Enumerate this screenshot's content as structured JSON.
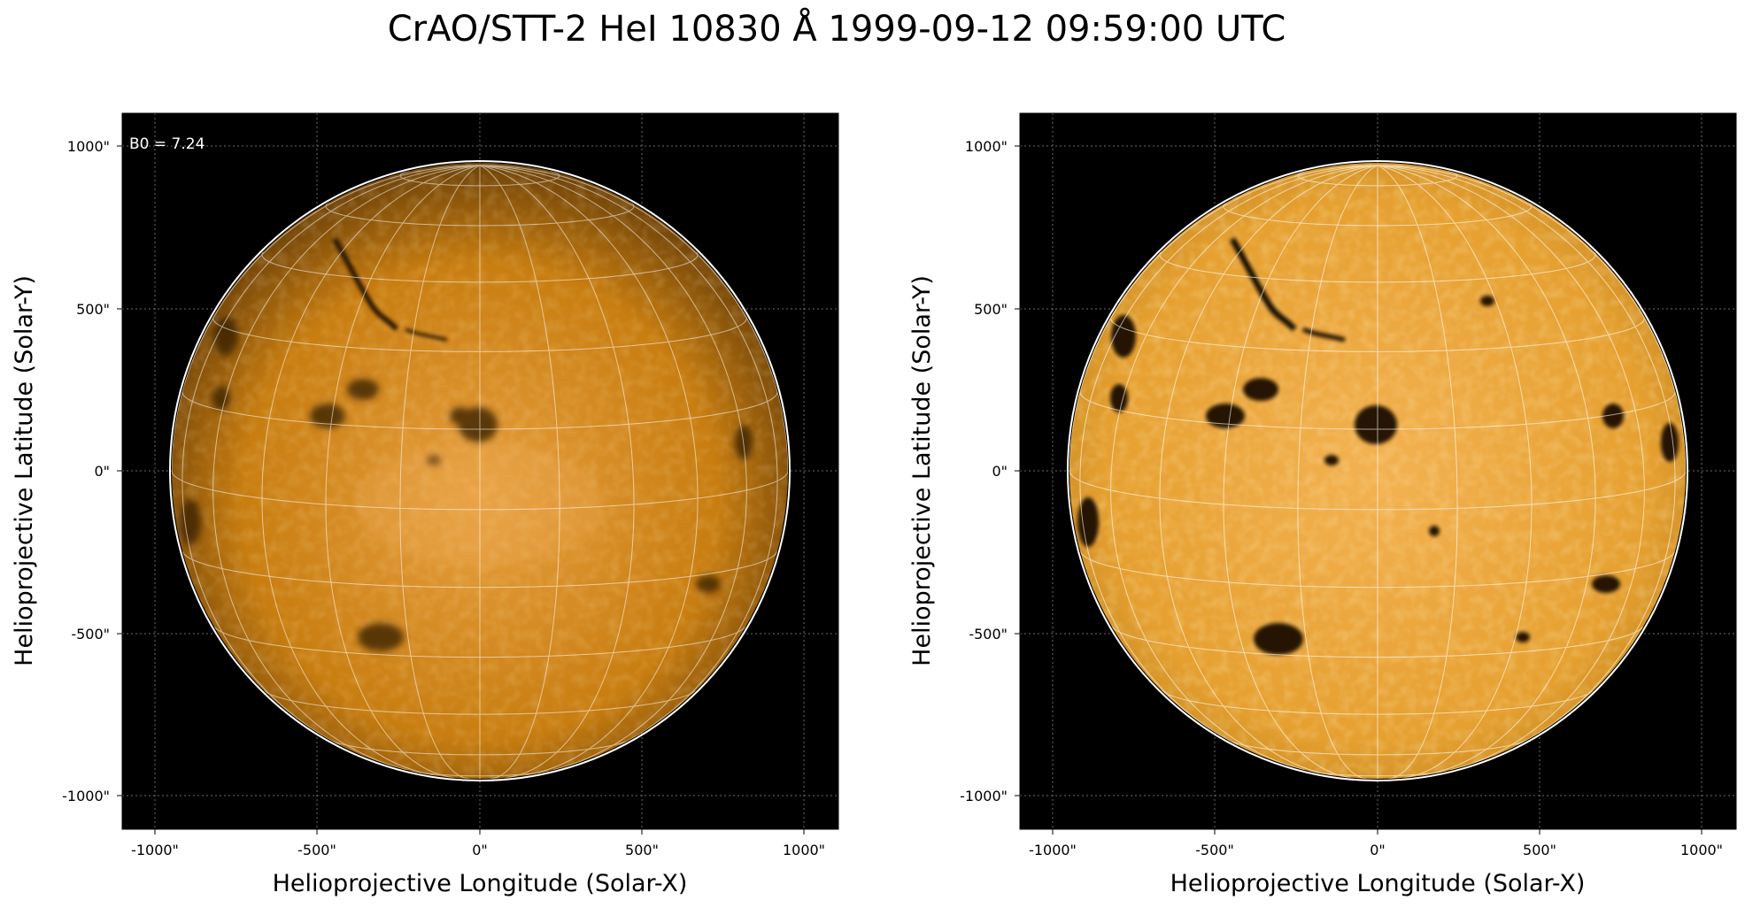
{
  "title": "CrAO/STT-2 HeI 10830 Å 1999-09-12 09:59:00 UTC",
  "colors": {
    "background": "#000000",
    "disk": "#cc8000",
    "limb": "#ffffff",
    "grid": "#ffffff"
  },
  "panels": [
    {
      "name": "original",
      "xlabel": "Helioprojective Longitude (Solar-X)",
      "ylabel": "Helioprojective Latitude (Solar-Y)",
      "xticks": [
        "-1000\"",
        "-500\"",
        "0\"",
        "500\"",
        "1000\""
      ],
      "yticks": [
        "1000\"",
        "500\"",
        "0\"",
        "-500\"",
        "-1000\""
      ],
      "annotation": "B0 = 7.24"
    },
    {
      "name": "enhanced",
      "xlabel": "Helioprojective Longitude (Solar-X)",
      "ylabel": "Helioprojective Latitude (Solar-Y)",
      "xticks": [
        "-1000\"",
        "-500\"",
        "0\"",
        "500\"",
        "1000\""
      ],
      "yticks": [
        "1000\"",
        "500\"",
        "0\"",
        "-500\"",
        "-1000\""
      ],
      "annotation": ""
    }
  ]
}
